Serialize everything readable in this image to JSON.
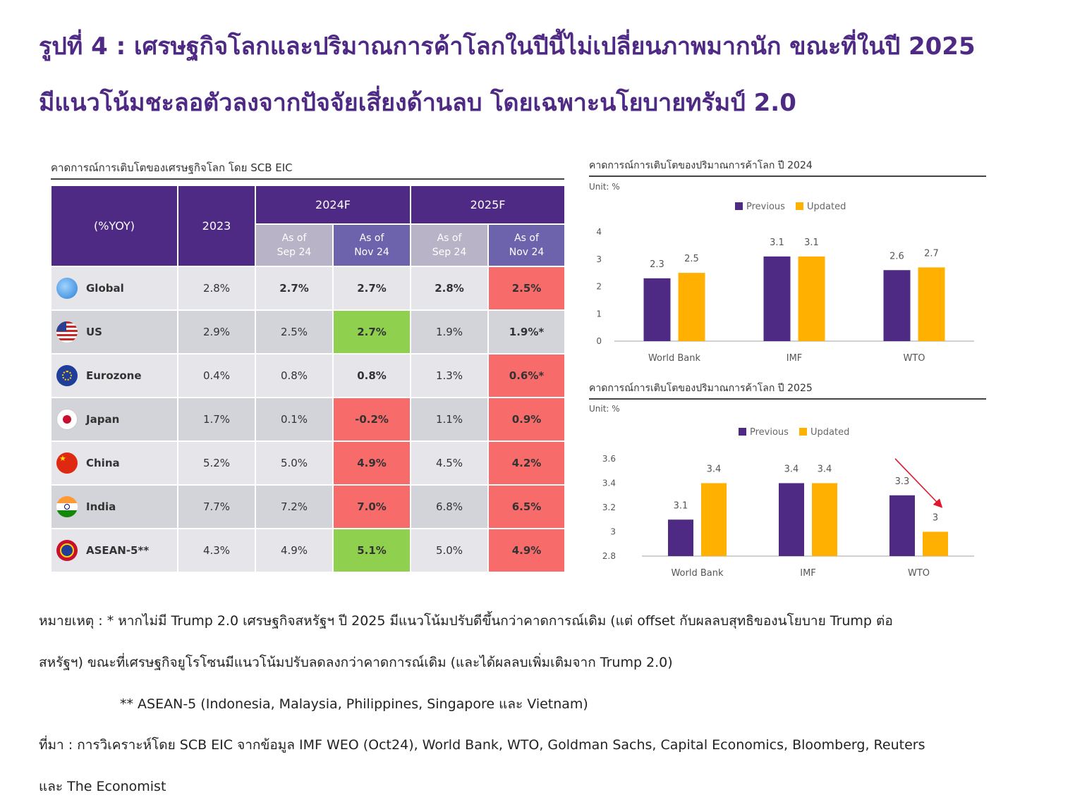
{
  "title": {
    "line1": "รูปที่ 4 : เศรษฐกิจโลกและปริมาณการค้าโลกในปีนี้ไม่เปลี่ยนภาพมากนัก ขณะที่ในปี 2025",
    "line2": "มีแนวโน้มชะลอตัวลงจากปัจจัยเสี่ยงด้านลบ โดยเฉพาะนโยบายทรัมป์ 2.0"
  },
  "table": {
    "title": "คาดการณ์การเติบโตของเศรษฐกิจโลก โดย SCB EIC",
    "header": {
      "metric": "(%YOY)",
      "y2023": "2023",
      "y2024": "2024F",
      "y2025": "2025F",
      "as_of_sep_1": "As of",
      "as_of_sep_2": "Sep 24",
      "as_of_nov_1": "As of",
      "as_of_nov_2": "Nov 24"
    },
    "rows": [
      {
        "region": "Global",
        "flag": "globe-icon",
        "v2023": "2.8%",
        "v24sep": "2.7%",
        "v24nov": "2.7%",
        "v25sep": "2.8%",
        "v25nov": "2.5%"
      },
      {
        "region": "US",
        "flag": "us-flag-icon",
        "v2023": "2.9%",
        "v24sep": "2.5%",
        "v24nov": "2.7%",
        "v25sep": "1.9%",
        "v25nov": "1.9%*"
      },
      {
        "region": "Eurozone",
        "flag": "eu-flag-icon",
        "v2023": "0.4%",
        "v24sep": "0.8%",
        "v24nov": "0.8%",
        "v25sep": "1.3%",
        "v25nov": "0.6%*"
      },
      {
        "region": "Japan",
        "flag": "japan-flag-icon",
        "v2023": "1.7%",
        "v24sep": "0.1%",
        "v24nov": "-0.2%",
        "v25sep": "1.1%",
        "v25nov": "0.9%"
      },
      {
        "region": "China",
        "flag": "china-flag-icon",
        "v2023": "5.2%",
        "v24sep": "5.0%",
        "v24nov": "4.9%",
        "v25sep": "4.5%",
        "v25nov": "4.2%"
      },
      {
        "region": "India",
        "flag": "india-flag-icon",
        "v2023": "7.7%",
        "v24sep": "7.2%",
        "v24nov": "7.0%",
        "v25sep": "6.8%",
        "v25nov": "6.5%"
      },
      {
        "region": "ASEAN-5**",
        "flag": "asean-flag-icon",
        "v2023": "4.3%",
        "v24sep": "4.9%",
        "v24nov": "5.1%",
        "v25sep": "5.0%",
        "v25nov": "4.9%"
      }
    ]
  },
  "colors": {
    "purple": "#4e2a84",
    "orange": "#ffb000",
    "red_cell": "#f86b6b",
    "green_cell": "#8fd14f",
    "arrow": "#e0182d"
  },
  "chart_data": [
    {
      "type": "bar",
      "title": "คาดการณ์การเติบโตของปริมาณการค้าโลก  ปี 2024",
      "unit": "Unit: %",
      "categories": [
        "World Bank",
        "IMF",
        "WTO"
      ],
      "series": [
        {
          "name": "Previous",
          "values": [
            2.3,
            3.1,
            2.6
          ]
        },
        {
          "name": "Updated",
          "values": [
            2.5,
            3.1,
            2.7
          ]
        }
      ],
      "ylim": [
        0,
        4
      ],
      "yticks": [
        0,
        1,
        2,
        3,
        4
      ],
      "legend": "top-center"
    },
    {
      "type": "bar",
      "title": "คาดการณ์การเติบโตของปริมาณการค้าโลก  ปี 2025",
      "unit": "Unit: %",
      "categories": [
        "World Bank",
        "IMF",
        "WTO"
      ],
      "series": [
        {
          "name": "Previous",
          "values": [
            3.1,
            3.4,
            3.3
          ]
        },
        {
          "name": "Updated",
          "values": [
            3.4,
            3.4,
            3
          ]
        }
      ],
      "ylim": [
        2.8,
        3.6
      ],
      "yticks": [
        2.8,
        3,
        3.2,
        3.4,
        3.6
      ],
      "legend": "top-center",
      "annotation": "red arrow pointing from WTO Previous to WTO Updated"
    }
  ],
  "notes": {
    "n1": "หมายเหตุ : * หากไม่มี Trump 2.0 เศรษฐกิจสหรัฐฯ ปี 2025 มีแนวโน้มปรับดีขึ้นกว่าคาดการณ์เดิม (แต่ offset กับผลลบสุทธิของนโยบาย Trump ต่อ",
    "n2": "สหรัฐฯ) ขณะที่เศรษฐกิจยูโรโซนมีแนวโน้มปรับลดลงกว่าคาดการณ์เดิม (และได้ผลลบเพิ่มเติมจาก Trump 2.0)",
    "n3": "** ASEAN-5 (Indonesia, Malaysia, Philippines, Singapore และ Vietnam)",
    "n4": "ที่มา : การวิเคราะห์โดย SCB EIC จากข้อมูล IMF WEO (Oct24), World Bank, WTO, Goldman Sachs, Capital Economics, Bloomberg, Reuters",
    "n5": "และ The Economist"
  }
}
